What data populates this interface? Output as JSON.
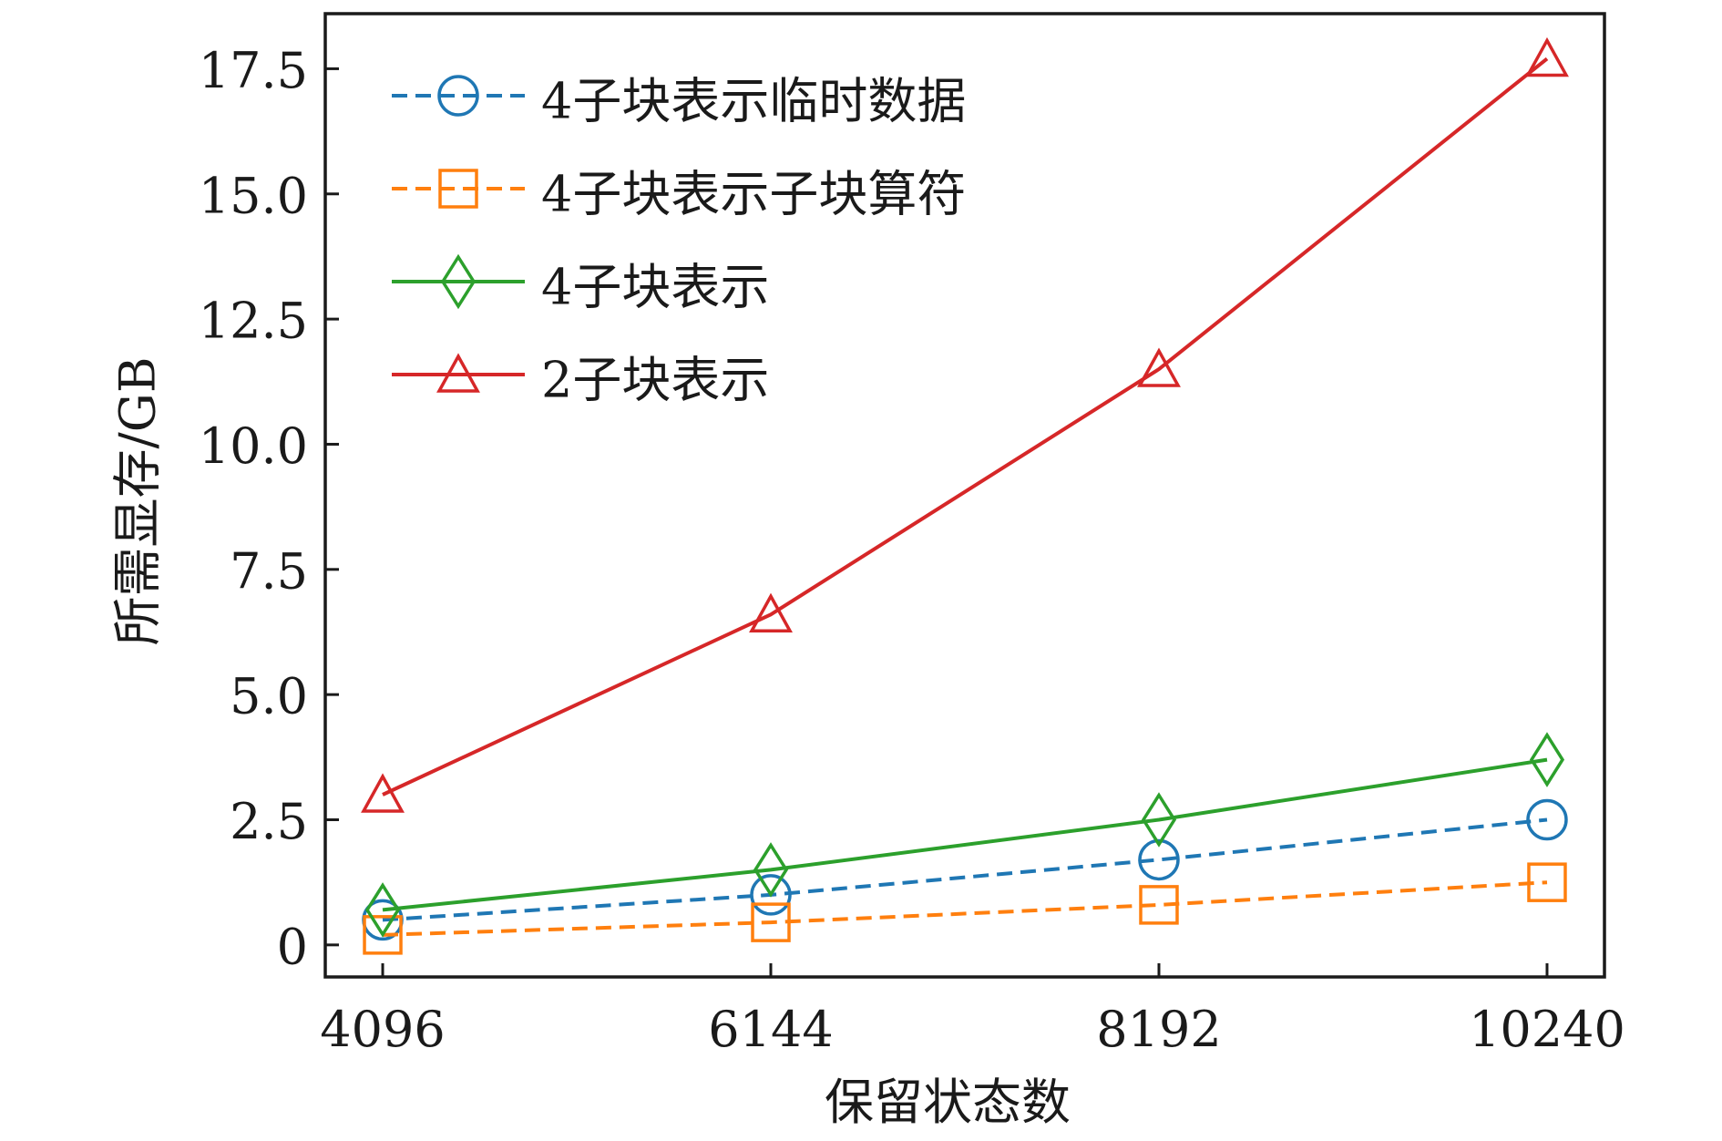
{
  "chart_data": {
    "type": "line",
    "x": [
      4096,
      6144,
      8192,
      10240
    ],
    "xtick_labels": [
      "4096",
      "6144",
      "8192",
      "10240"
    ],
    "yticks": [
      0,
      2.5,
      5,
      7.5,
      10,
      12.5,
      15,
      17.5
    ],
    "ytick_labels": [
      "0",
      "2.5",
      "5.0",
      "7.5",
      "10.0",
      "12.5",
      "15.0",
      "17.5"
    ],
    "xlabel": "保留状态数",
    "ylabel": "所需显存/GB",
    "xlim": [
      3793,
      10543
    ],
    "ylim": [
      -0.64,
      18.6
    ],
    "grid": false,
    "legend": "top-left",
    "series": [
      {
        "name": "4子块表示临时数据",
        "values": [
          0.5,
          1.0,
          1.7,
          2.5
        ],
        "color": "#1f77b4",
        "linestyle": "dashed",
        "marker": "circle"
      },
      {
        "name": "4子块表示子块算符",
        "values": [
          0.2,
          0.45,
          0.8,
          1.25
        ],
        "color": "#ff7f0e",
        "linestyle": "dashed",
        "marker": "square"
      },
      {
        "name": "4子块表示",
        "values": [
          0.7,
          1.5,
          2.5,
          3.7
        ],
        "color": "#2ca02c",
        "linestyle": "solid",
        "marker": "diamond"
      },
      {
        "name": "2子块表示",
        "values": [
          3.0,
          6.6,
          11.5,
          17.7
        ],
        "color": "#d62728",
        "linestyle": "solid",
        "marker": "triangle"
      }
    ]
  }
}
